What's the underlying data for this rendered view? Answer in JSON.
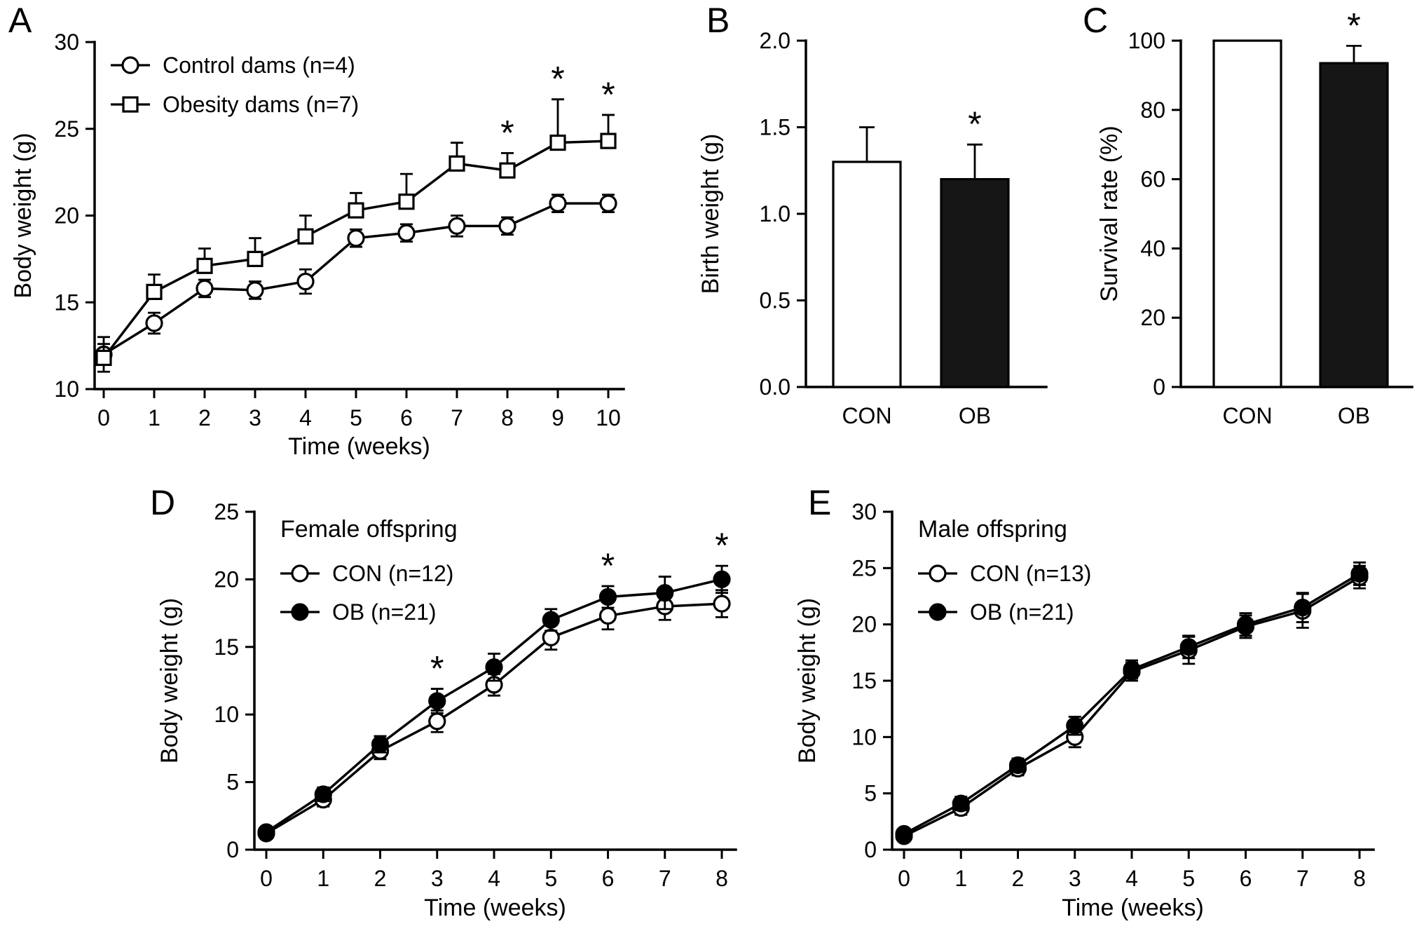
{
  "figure": {
    "background": "#ffffff",
    "ink": "#000000",
    "bar_fill_control": "#ffffff",
    "bar_fill_obesity": "#161616"
  },
  "panels": {
    "A": {
      "label": "A"
    },
    "B": {
      "label": "B"
    },
    "C": {
      "label": "C"
    },
    "D": {
      "label": "D"
    },
    "E": {
      "label": "E"
    }
  },
  "chart_data": [
    {
      "panel": "A",
      "type": "line",
      "title": "",
      "xlabel": "Time (weeks)",
      "ylabel": "Body weight (g)",
      "x": [
        0,
        1,
        2,
        3,
        4,
        5,
        6,
        7,
        8,
        9,
        10
      ],
      "xticks": [
        0,
        1,
        2,
        3,
        4,
        5,
        6,
        7,
        8,
        9,
        10
      ],
      "ylim": [
        10,
        30
      ],
      "yticks": [
        10,
        15,
        20,
        25,
        30
      ],
      "ytick_labels": [
        "10",
        "15",
        "20",
        "25",
        "30"
      ],
      "legend_position": "top-left-inside",
      "grid": false,
      "series": [
        {
          "name": "Control dams (n=4)",
          "marker": "circle",
          "fill": "open",
          "values": [
            12.0,
            13.8,
            15.8,
            15.7,
            16.2,
            18.7,
            19.0,
            19.4,
            19.4,
            20.7,
            20.7
          ],
          "errors": [
            1.0,
            0.6,
            0.5,
            0.5,
            0.7,
            0.5,
            0.5,
            0.6,
            0.5,
            0.5,
            0.5
          ],
          "error_dir": "both",
          "star_weeks": []
        },
        {
          "name": "Obesity dams (n=7)",
          "marker": "square",
          "fill": "open",
          "values": [
            11.8,
            15.6,
            17.1,
            17.5,
            18.8,
            20.3,
            20.8,
            23.0,
            22.6,
            24.2,
            24.3
          ],
          "errors": [
            0.8,
            1.0,
            1.0,
            1.2,
            1.2,
            1.0,
            1.6,
            1.2,
            1.0,
            2.5,
            1.5
          ],
          "error_dir": "up",
          "star_weeks": [
            8,
            9,
            10
          ]
        }
      ]
    },
    {
      "panel": "B",
      "type": "bar",
      "ylabel": "Birth weight (g)",
      "categories": [
        "CON",
        "OB"
      ],
      "values": [
        1.3,
        1.2
      ],
      "errors": [
        0.2,
        0.2
      ],
      "bar_fills": [
        "#ffffff",
        "#161616"
      ],
      "stars": [
        false,
        true
      ],
      "ylim": [
        0,
        2.0
      ],
      "yticks": [
        0,
        0.5,
        1.0,
        1.5,
        2.0
      ],
      "ytick_labels": [
        "0.0",
        "0.5",
        "1.0",
        "1.5",
        "2.0"
      ],
      "grid": false
    },
    {
      "panel": "C",
      "type": "bar",
      "ylabel": "Survival rate (%)",
      "categories": [
        "CON",
        "OB"
      ],
      "values": [
        100,
        93.5
      ],
      "errors": [
        0,
        5
      ],
      "bar_fills": [
        "#ffffff",
        "#161616"
      ],
      "stars": [
        false,
        true
      ],
      "ylim": [
        0,
        100
      ],
      "yticks": [
        0,
        20,
        40,
        60,
        80,
        100
      ],
      "ytick_labels": [
        "0",
        "20",
        "40",
        "60",
        "80",
        "100"
      ],
      "grid": false
    },
    {
      "panel": "D",
      "type": "line",
      "title": "Female offspring",
      "xlabel": "Time (weeks)",
      "ylabel": "Body weight (g)",
      "x": [
        0,
        1,
        2,
        3,
        4,
        5,
        6,
        7,
        8
      ],
      "xticks": [
        0,
        1,
        2,
        3,
        4,
        5,
        6,
        7,
        8
      ],
      "ylim": [
        0,
        25
      ],
      "yticks": [
        0,
        5,
        10,
        15,
        20,
        25
      ],
      "ytick_labels": [
        "0",
        "5",
        "10",
        "15",
        "20",
        "25"
      ],
      "legend_position": "top-left-inside",
      "grid": false,
      "series": [
        {
          "name": "CON (n=12)",
          "marker": "circle",
          "fill": "open",
          "values": [
            1.2,
            3.7,
            7.3,
            9.5,
            12.2,
            15.7,
            17.3,
            18.0,
            18.2
          ],
          "errors": [
            0.3,
            0.5,
            0.6,
            0.8,
            0.8,
            0.9,
            1.0,
            1.0,
            1.0
          ],
          "error_dir": "both",
          "star_weeks": []
        },
        {
          "name": "OB (n=21)",
          "marker": "circle",
          "fill": "solid",
          "values": [
            1.3,
            4.1,
            7.8,
            11.0,
            13.5,
            17.0,
            18.7,
            19.0,
            20.0
          ],
          "errors": [
            0.3,
            0.5,
            0.6,
            0.9,
            1.0,
            0.8,
            0.8,
            1.2,
            1.0
          ],
          "error_dir": "both",
          "star_weeks": [
            3,
            6,
            8
          ]
        }
      ]
    },
    {
      "panel": "E",
      "type": "line",
      "title": "Male offspring",
      "xlabel": "Time (weeks)",
      "ylabel": "Body weight (g)",
      "x": [
        0,
        1,
        2,
        3,
        4,
        5,
        6,
        7,
        8
      ],
      "xticks": [
        0,
        1,
        2,
        3,
        4,
        5,
        6,
        7,
        8
      ],
      "ylim": [
        0,
        30
      ],
      "yticks": [
        0,
        5,
        10,
        15,
        20,
        25,
        30
      ],
      "ytick_labels": [
        "0",
        "5",
        "10",
        "15",
        "20",
        "25",
        "30"
      ],
      "legend_position": "top-left-inside",
      "grid": false,
      "series": [
        {
          "name": "CON (n=13)",
          "marker": "circle",
          "fill": "open",
          "values": [
            1.2,
            3.7,
            7.2,
            10.0,
            15.8,
            17.7,
            19.8,
            21.2,
            24.2
          ],
          "errors": [
            0.3,
            0.6,
            0.6,
            0.9,
            0.8,
            1.2,
            1.0,
            1.5,
            1.0
          ],
          "error_dir": "both",
          "star_weeks": []
        },
        {
          "name": "OB (n=21)",
          "marker": "circle",
          "fill": "solid",
          "values": [
            1.4,
            4.1,
            7.5,
            11.0,
            16.0,
            18.0,
            20.0,
            21.5,
            24.5
          ],
          "errors": [
            0.3,
            0.6,
            0.6,
            0.8,
            0.8,
            1.0,
            1.0,
            1.3,
            1.0
          ],
          "error_dir": "both",
          "star_weeks": []
        }
      ]
    }
  ]
}
